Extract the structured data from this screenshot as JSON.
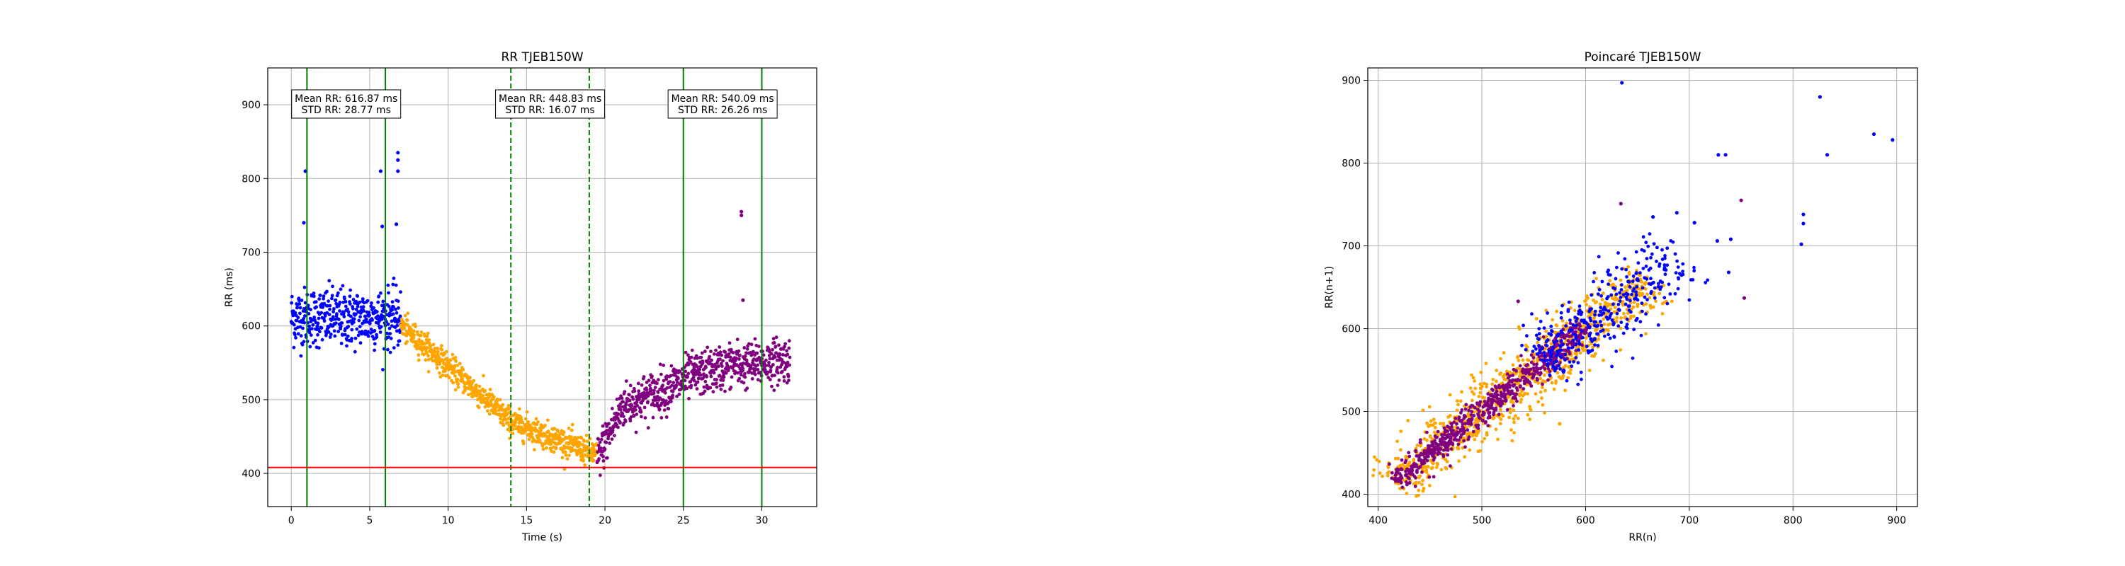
{
  "chart_data": [
    {
      "type": "scatter",
      "title": "RR TJEB150W",
      "xlabel": "Time (s)",
      "ylabel": "RR (ms)",
      "xlim": [
        -1.5,
        33.5
      ],
      "ylim": [
        355,
        950
      ],
      "xticks": [
        0,
        5,
        10,
        15,
        20,
        25,
        30
      ],
      "yticks": [
        400,
        500,
        600,
        700,
        800,
        900
      ],
      "grid": true,
      "series": [
        {
          "color": "#0000ff",
          "segments": [
            {
              "t0": 0.0,
              "t1": 7.0,
              "v0": 612,
              "v1": 610
            }
          ]
        },
        {
          "color": "#ffa500",
          "segments": [
            {
              "t0": 7.0,
              "t1": 9.5,
              "v0": 600,
              "v1": 555
            },
            {
              "t0": 9.5,
              "t1": 14.0,
              "v0": 555,
              "v1": 470
            },
            {
              "t0": 14.0,
              "t1": 19.5,
              "v0": 470,
              "v1": 425
            }
          ]
        },
        {
          "color": "#800080",
          "segments": [
            {
              "t0": 19.5,
              "t1": 21.0,
              "v0": 420,
              "v1": 485
            },
            {
              "t0": 21.0,
              "t1": 25.0,
              "v0": 490,
              "v1": 525
            },
            {
              "t0": 25.0,
              "t1": 28.5,
              "v0": 528,
              "v1": 550
            },
            {
              "t0": 28.5,
              "t1": 31.8,
              "v0": 545,
              "v1": 555
            }
          ]
        }
      ],
      "outliers": [
        {
          "x": 0.9,
          "y": 810,
          "color": "#0000ff"
        },
        {
          "x": 0.8,
          "y": 740,
          "color": "#0000ff"
        },
        {
          "x": 5.7,
          "y": 810,
          "color": "#0000ff"
        },
        {
          "x": 5.8,
          "y": 735,
          "color": "#0000ff"
        },
        {
          "x": 6.8,
          "y": 835,
          "color": "#0000ff"
        },
        {
          "x": 6.8,
          "y": 825,
          "color": "#0000ff"
        },
        {
          "x": 6.8,
          "y": 810,
          "color": "#0000ff"
        },
        {
          "x": 6.7,
          "y": 738,
          "color": "#0000ff"
        },
        {
          "x": 28.7,
          "y": 755,
          "color": "#800080"
        },
        {
          "x": 28.7,
          "y": 750,
          "color": "#800080"
        },
        {
          "x": 28.8,
          "y": 635,
          "color": "#800080"
        }
      ],
      "vlines": [
        {
          "x": 1,
          "color": "#008000",
          "style": "solid"
        },
        {
          "x": 6,
          "color": "#008000",
          "style": "solid"
        },
        {
          "x": 14,
          "color": "#008000",
          "style": "dashed"
        },
        {
          "x": 19,
          "color": "#008000",
          "style": "dashed"
        },
        {
          "x": 25,
          "color": "#008000",
          "style": "solid"
        },
        {
          "x": 30,
          "color": "#008000",
          "style": "solid"
        }
      ],
      "hline": {
        "y": 408,
        "color": "#ff0000"
      },
      "annotations": [
        {
          "x": 3.5,
          "line1": "Mean RR: 616.87 ms",
          "line2": "STD RR: 28.77 ms"
        },
        {
          "x": 16.5,
          "line1": "Mean RR: 448.83 ms",
          "line2": "STD RR: 16.07 ms"
        },
        {
          "x": 27.5,
          "line1": "Mean RR: 540.09 ms",
          "line2": "STD RR: 26.26 ms"
        }
      ]
    },
    {
      "type": "scatter",
      "title": "Poincaré TJEB150W",
      "xlabel": "RR(n)",
      "ylabel": "RR(n+1)",
      "xlim": [
        390,
        920
      ],
      "ylim": [
        385,
        915
      ],
      "xticks": [
        400,
        500,
        600,
        700,
        800,
        900
      ],
      "yticks": [
        400,
        500,
        600,
        700,
        800,
        900
      ],
      "grid": true,
      "clusters": [
        {
          "color": "#ffa500",
          "from": 415,
          "to": 660,
          "spread": 16
        },
        {
          "color": "#800080",
          "from": 418,
          "to": 600,
          "spread": 7
        },
        {
          "color": "#0000ff",
          "from": 560,
          "to": 690,
          "spread": 18
        }
      ],
      "outliers": [
        {
          "x": 635,
          "y": 897,
          "color": "#0000ff"
        },
        {
          "x": 826,
          "y": 880,
          "color": "#0000ff"
        },
        {
          "x": 878,
          "y": 835,
          "color": "#0000ff"
        },
        {
          "x": 896,
          "y": 828,
          "color": "#0000ff"
        },
        {
          "x": 833,
          "y": 810,
          "color": "#0000ff"
        },
        {
          "x": 728,
          "y": 810,
          "color": "#0000ff"
        },
        {
          "x": 735,
          "y": 810,
          "color": "#0000ff"
        },
        {
          "x": 810,
          "y": 738,
          "color": "#0000ff"
        },
        {
          "x": 810,
          "y": 727,
          "color": "#0000ff"
        },
        {
          "x": 740,
          "y": 708,
          "color": "#0000ff"
        },
        {
          "x": 727,
          "y": 706,
          "color": "#0000ff"
        },
        {
          "x": 808,
          "y": 702,
          "color": "#0000ff"
        },
        {
          "x": 738,
          "y": 668,
          "color": "#0000ff"
        },
        {
          "x": 705,
          "y": 728,
          "color": "#0000ff"
        },
        {
          "x": 688,
          "y": 740,
          "color": "#0000ff"
        },
        {
          "x": 665,
          "y": 735,
          "color": "#0000ff"
        },
        {
          "x": 634,
          "y": 751,
          "color": "#800080"
        },
        {
          "x": 750,
          "y": 755,
          "color": "#800080"
        },
        {
          "x": 753,
          "y": 637,
          "color": "#800080"
        },
        {
          "x": 535,
          "y": 633,
          "color": "#800080"
        },
        {
          "x": 575,
          "y": 485,
          "color": "#ffa500"
        },
        {
          "x": 590,
          "y": 570,
          "color": "#ffa500"
        }
      ]
    }
  ]
}
